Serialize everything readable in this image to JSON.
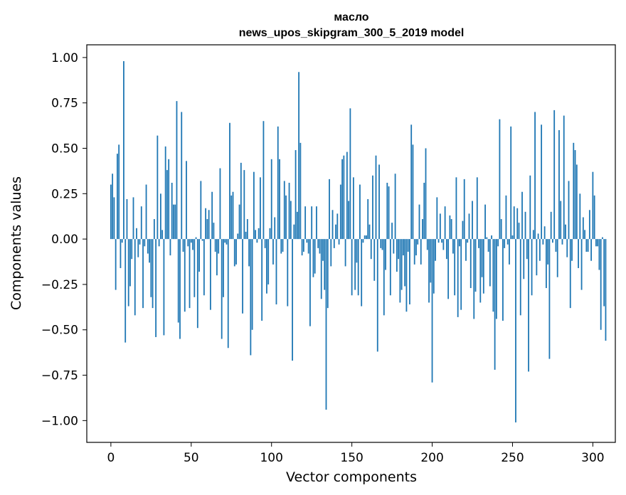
{
  "chart_data": {
    "type": "bar",
    "title": "масло",
    "subtitle": "news_upos_skipgram_300_5_2019 model",
    "xlabel": "Vector components",
    "ylabel": "Components values",
    "xlim": [
      -15,
      314
    ],
    "ylim": [
      -1.12,
      1.07
    ],
    "x_ticks": [
      0,
      50,
      100,
      150,
      200,
      250,
      300
    ],
    "x_tick_labels": [
      "0",
      "50",
      "100",
      "150",
      "200",
      "250",
      "300"
    ],
    "y_ticks": [
      1.0,
      0.75,
      0.5,
      0.25,
      0.0,
      -0.25,
      -0.5,
      -0.75,
      -1.0
    ],
    "y_tick_labels": [
      "1.00",
      "0.75",
      "0.50",
      "0.25",
      "0.00",
      "−0.25",
      "−0.50",
      "−0.75",
      "−1.00"
    ],
    "bar_color": "#1f77b4",
    "bar_width": 0.8,
    "values": [
      0.3,
      0.36,
      0.23,
      -0.28,
      0.47,
      0.52,
      -0.16,
      -0.02,
      0.98,
      -0.57,
      0.22,
      -0.37,
      -0.26,
      -0.11,
      0.23,
      -0.42,
      0.06,
      -0.1,
      -0.03,
      0.18,
      -0.38,
      -0.04,
      0.3,
      -0.08,
      -0.13,
      -0.32,
      -0.38,
      0.11,
      -0.54,
      0.57,
      -0.04,
      0.25,
      0.05,
      -0.53,
      0.51,
      0.38,
      0.44,
      -0.09,
      0.31,
      0.19,
      0.19,
      0.76,
      -0.46,
      -0.55,
      0.7,
      -0.07,
      -0.4,
      0.43,
      -0.04,
      -0.38,
      -0.02,
      -0.06,
      -0.32,
      0.01,
      -0.49,
      -0.18,
      0.32,
      -0.01,
      -0.31,
      0.17,
      0.11,
      0.16,
      -0.39,
      0.26,
      0.09,
      -0.07,
      -0.2,
      -0.08,
      0.39,
      -0.55,
      -0.32,
      -0.02,
      -0.03,
      -0.6,
      0.64,
      0.24,
      0.26,
      -0.15,
      -0.14,
      0.03,
      0.19,
      0.42,
      -0.41,
      0.38,
      0.04,
      0.11,
      -0.15,
      -0.64,
      -0.5,
      0.37,
      0.05,
      -0.02,
      0.06,
      0.34,
      -0.45,
      0.65,
      -0.05,
      -0.3,
      -0.25,
      0.06,
      0.44,
      -0.14,
      0.12,
      -0.36,
      0.62,
      0.44,
      -0.08,
      -0.07,
      0.32,
      0.24,
      -0.37,
      0.31,
      0.21,
      -0.67,
      0.08,
      0.49,
      0.15,
      0.92,
      0.53,
      -0.09,
      -0.07,
      0.18,
      -0.02,
      -0.08,
      -0.48,
      0.18,
      -0.21,
      -0.19,
      0.18,
      -0.05,
      -0.08,
      -0.33,
      -0.12,
      -0.28,
      -0.94,
      -0.38,
      0.33,
      -0.15,
      0.16,
      -0.05,
      0.08,
      0.14,
      -0.03,
      0.3,
      0.44,
      0.46,
      -0.15,
      0.48,
      0.21,
      0.72,
      -0.31,
      0.34,
      -0.28,
      -0.13,
      -0.31,
      0.3,
      -0.37,
      -0.02,
      0.02,
      0.02,
      0.22,
      0.08,
      -0.11,
      0.35,
      -0.23,
      0.46,
      -0.62,
      0.41,
      -0.05,
      -0.06,
      -0.42,
      -0.17,
      0.31,
      0.29,
      -0.31,
      0.09,
      -0.08,
      0.36,
      -0.18,
      -0.11,
      -0.35,
      -0.28,
      -0.09,
      -0.26,
      -0.4,
      -0.07,
      -0.36,
      0.63,
      0.52,
      -0.14,
      -0.09,
      -0.03,
      0.19,
      -0.14,
      0.11,
      0.31,
      0.5,
      -0.06,
      -0.35,
      -0.24,
      -0.79,
      -0.3,
      -0.12,
      0.23,
      -0.02,
      0.14,
      -0.02,
      -0.06,
      0.18,
      -0.11,
      -0.33,
      0.13,
      0.11,
      -0.08,
      -0.31,
      0.34,
      -0.43,
      -0.04,
      -0.39,
      0.1,
      0.33,
      -0.12,
      -0.02,
      0.14,
      -0.27,
      0.21,
      -0.44,
      -0.29,
      0.34,
      -0.05,
      -0.35,
      -0.21,
      -0.3,
      0.19,
      0.01,
      -0.07,
      -0.26,
      0.02,
      -0.4,
      -0.72,
      -0.44,
      -0.04,
      0.66,
      0.11,
      -0.45,
      -0.05,
      0.24,
      -0.03,
      -0.14,
      0.62,
      0.02,
      0.18,
      -1.01,
      0.17,
      0.09,
      -0.42,
      0.26,
      -0.22,
      0.15,
      -0.11,
      -0.73,
      0.35,
      -0.31,
      0.05,
      0.7,
      -0.2,
      0.03,
      -0.12,
      0.63,
      -0.03,
      0.07,
      -0.27,
      -0.14,
      -0.66,
      0.15,
      -0.02,
      0.71,
      -0.07,
      -0.21,
      0.6,
      0.21,
      -0.03,
      0.68,
      0.08,
      -0.1,
      0.32,
      -0.38,
      -0.12,
      0.53,
      0.49,
      0.41,
      -0.16,
      0.25,
      -0.28,
      0.12,
      0.05,
      -0.07,
      -0.07,
      0.16,
      -0.12,
      0.37,
      0.24,
      -0.04,
      -0.04,
      -0.17,
      -0.5,
      0.01,
      -0.37,
      -0.56
    ]
  }
}
